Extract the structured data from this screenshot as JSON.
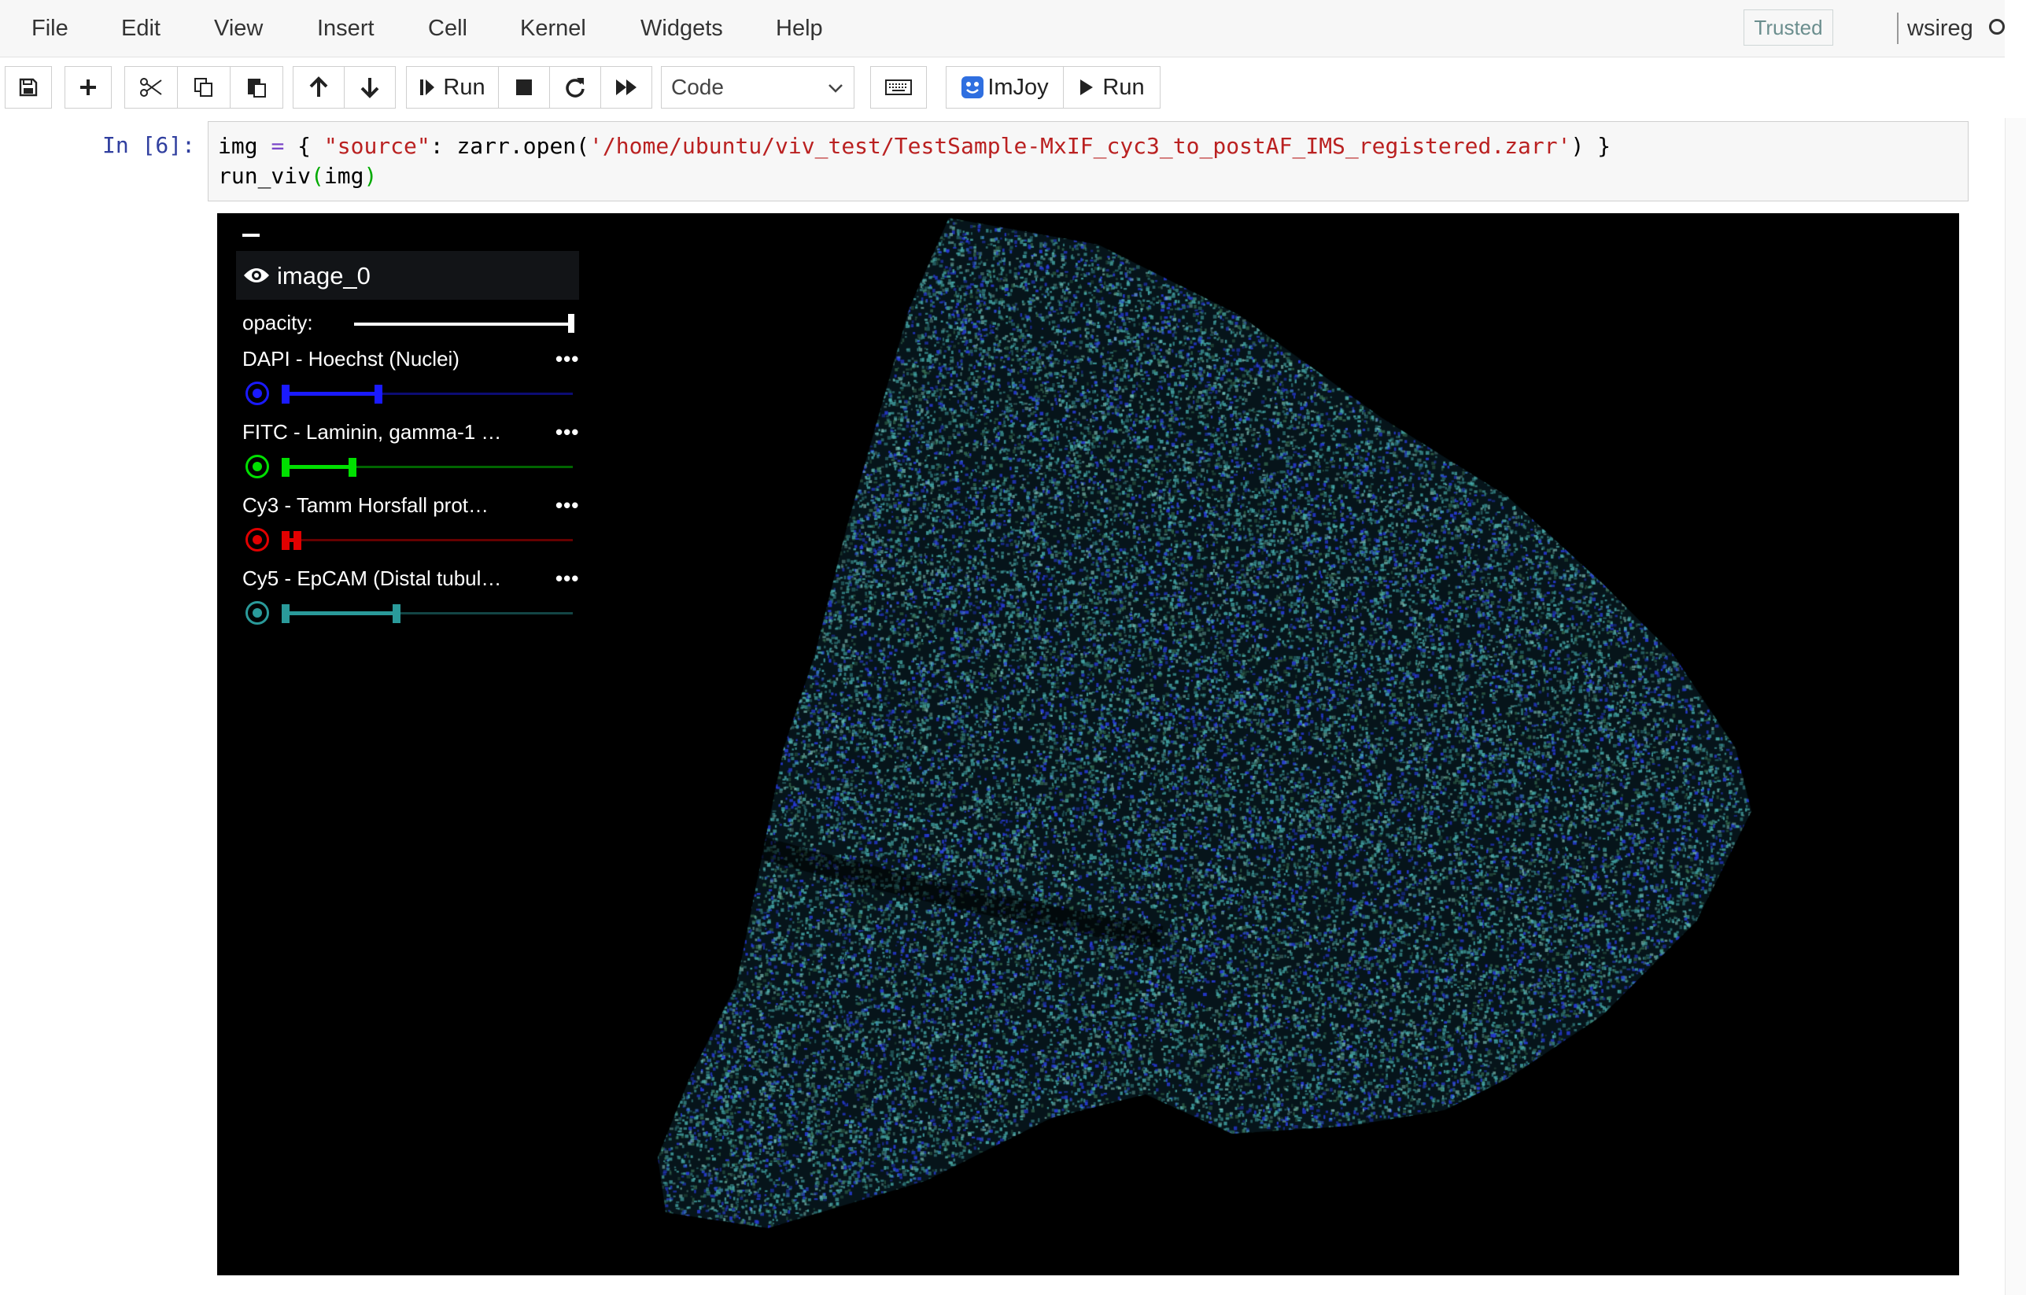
{
  "menubar": {
    "items": [
      "File",
      "Edit",
      "View",
      "Insert",
      "Cell",
      "Kernel",
      "Widgets",
      "Help"
    ],
    "trusted_label": "Trusted",
    "kernel_name": "wsireg"
  },
  "toolbar": {
    "save_icon": "save-icon",
    "run_label": "Run",
    "cell_type": "Code",
    "imjoy_label": "ImJoy",
    "imjoy_run_label": "Run"
  },
  "cell": {
    "prompt": "In [6]:",
    "code_line1_a": "img ",
    "code_line1_eq": "=",
    "code_line1_b": " { ",
    "code_line1_key": "\"source\"",
    "code_line1_c": ": zarr.open(",
    "code_line1_path": "'/home/ubuntu/viv_test/TestSample-MxIF_cyc3_to_postAF_IMS_registered.zarr'",
    "code_line1_d": ") }",
    "code_line2_a": "run_viv",
    "code_line2_paren_open": "(",
    "code_line2_arg": "img",
    "code_line2_paren_close": ")"
  },
  "viewer": {
    "layer_name": "image_0",
    "opacity_label": "opacity:",
    "opacity_value": 1.0,
    "channels": [
      {
        "name": "DAPI - Hoechst (Nuclei)",
        "color": "#1a1aff",
        "range": [
          0.0,
          0.33
        ]
      },
      {
        "name": "FITC - Laminin, gamma-1 …",
        "color": "#00e000",
        "range": [
          0.0,
          0.24
        ]
      },
      {
        "name": "Cy3 - Tamm Horsfall prot…",
        "color": "#e00000",
        "range": [
          0.0,
          0.05
        ]
      },
      {
        "name": "Cy5 - EpCAM (Distal tubul…",
        "color": "#2a9a9a",
        "range": [
          0.0,
          0.39
        ]
      }
    ],
    "more_label": "•••"
  }
}
